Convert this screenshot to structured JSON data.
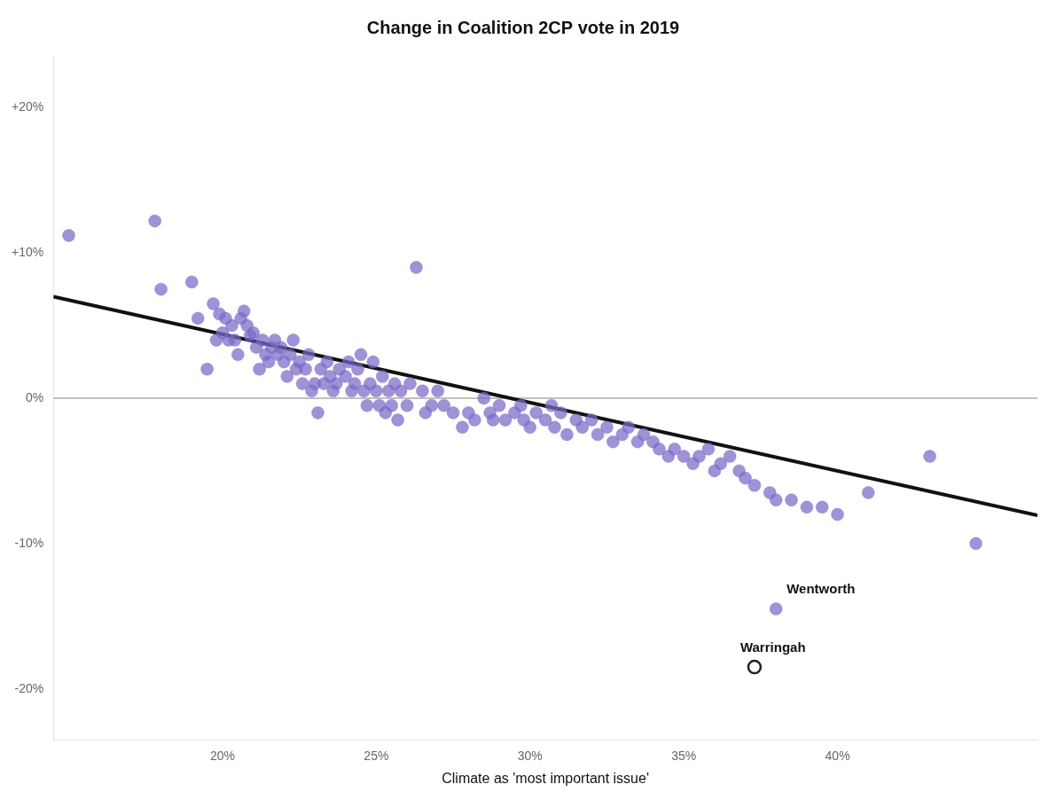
{
  "chart_data": {
    "type": "scatter",
    "title": "Change in Coalition 2CP vote in 2019",
    "xlabel": "Climate as 'most important issue'",
    "grid": false,
    "xlim": [
      0.145,
      0.465
    ],
    "ylim": [
      -0.235,
      0.235
    ],
    "xticks": [
      {
        "value": 0.2,
        "label": "20%"
      },
      {
        "value": 0.25,
        "label": "25%"
      },
      {
        "value": 0.3,
        "label": "30%"
      },
      {
        "value": 0.35,
        "label": "35%"
      },
      {
        "value": 0.4,
        "label": "40%"
      }
    ],
    "yticks": [
      {
        "value": -0.2,
        "label": "-20%"
      },
      {
        "value": -0.1,
        "label": "-10%"
      },
      {
        "value": 0.0,
        "label": "0%"
      },
      {
        "value": 0.1,
        "label": "+10%"
      },
      {
        "value": 0.2,
        "label": "+20%"
      }
    ],
    "series": [
      {
        "type": "line",
        "color": "#aaaaaa",
        "x": [
          0.145,
          0.465
        ],
        "values": [
          0,
          0
        ]
      },
      {
        "type": "line",
        "color": "#111111",
        "x": [
          0.145,
          0.465
        ],
        "values": [
          0.06985,
          -0.08055
        ]
      },
      {
        "type": "scatter",
        "color": "#7B68C8",
        "marker": "circle",
        "x": [
          0.15,
          0.178,
          0.18,
          0.19,
          0.192,
          0.195,
          0.197,
          0.198,
          0.199,
          0.2,
          0.201,
          0.202,
          0.203,
          0.204,
          0.205,
          0.206,
          0.207,
          0.208,
          0.209,
          0.21,
          0.211,
          0.212,
          0.213,
          0.214,
          0.215,
          0.216,
          0.217,
          0.218,
          0.219,
          0.22,
          0.221,
          0.222,
          0.223,
          0.224,
          0.225,
          0.226,
          0.227,
          0.228,
          0.229,
          0.23,
          0.231,
          0.232,
          0.233,
          0.234,
          0.235,
          0.236,
          0.237,
          0.238,
          0.24,
          0.241,
          0.242,
          0.243,
          0.244,
          0.245,
          0.246,
          0.247,
          0.248,
          0.249,
          0.25,
          0.251,
          0.252,
          0.253,
          0.254,
          0.255,
          0.256,
          0.257,
          0.258,
          0.26,
          0.261,
          0.263,
          0.265,
          0.266,
          0.268,
          0.27,
          0.272,
          0.275,
          0.278,
          0.28,
          0.282,
          0.285,
          0.287,
          0.288,
          0.29,
          0.292,
          0.295,
          0.297,
          0.298,
          0.3,
          0.302,
          0.305,
          0.307,
          0.308,
          0.31,
          0.312,
          0.315,
          0.317,
          0.32,
          0.322,
          0.325,
          0.327,
          0.33,
          0.332,
          0.335,
          0.337,
          0.34,
          0.342,
          0.345,
          0.347,
          0.35,
          0.353,
          0.355,
          0.358,
          0.36,
          0.362,
          0.365,
          0.368,
          0.37,
          0.373,
          0.378,
          0.38,
          0.385,
          0.39,
          0.395,
          0.4,
          0.41,
          0.43,
          0.445
        ],
        "values": [
          0.112,
          0.122,
          0.075,
          0.08,
          0.055,
          0.02,
          0.065,
          0.04,
          0.058,
          0.045,
          0.055,
          0.04,
          0.05,
          0.04,
          0.03,
          0.055,
          0.06,
          0.05,
          0.043,
          0.045,
          0.035,
          0.02,
          0.04,
          0.03,
          0.025,
          0.035,
          0.04,
          0.03,
          0.035,
          0.025,
          0.015,
          0.03,
          0.04,
          0.02,
          0.025,
          0.01,
          0.02,
          0.03,
          0.005,
          0.01,
          -0.01,
          0.02,
          0.01,
          0.025,
          0.015,
          0.005,
          0.01,
          0.02,
          0.015,
          0.025,
          0.005,
          0.01,
          0.02,
          0.03,
          0.005,
          -0.005,
          0.01,
          0.025,
          0.005,
          -0.005,
          0.015,
          -0.01,
          0.005,
          -0.005,
          0.01,
          -0.015,
          0.005,
          -0.005,
          0.01,
          0.09,
          0.005,
          -0.01,
          -0.005,
          0.005,
          -0.005,
          -0.01,
          -0.02,
          -0.01,
          -0.015,
          0.0,
          -0.01,
          -0.015,
          -0.005,
          -0.015,
          -0.01,
          -0.005,
          -0.015,
          -0.02,
          -0.01,
          -0.015,
          -0.005,
          -0.02,
          -0.01,
          -0.025,
          -0.015,
          -0.02,
          -0.015,
          -0.025,
          -0.02,
          -0.03,
          -0.025,
          -0.02,
          -0.03,
          -0.025,
          -0.03,
          -0.035,
          -0.04,
          -0.035,
          -0.04,
          -0.045,
          -0.04,
          -0.035,
          -0.05,
          -0.045,
          -0.04,
          -0.05,
          -0.055,
          -0.06,
          -0.065,
          -0.07,
          -0.07,
          -0.075,
          -0.075,
          -0.08,
          -0.065,
          -0.04,
          -0.1
        ]
      },
      {
        "type": "scatter",
        "color": "#7B68C8",
        "marker": "circle",
        "x": [
          0.38
        ],
        "values": [
          -0.145
        ]
      },
      {
        "type": "scatter",
        "color": "#222222",
        "marker": "open_circle",
        "x": [
          0.373
        ],
        "values": [
          -0.185
        ]
      }
    ],
    "annotations": [
      {
        "text": "Wentworth",
        "x": 0.38,
        "y": -0.145
      },
      {
        "text": "Warringah",
        "x": 0.373,
        "y": -0.185
      }
    ]
  }
}
